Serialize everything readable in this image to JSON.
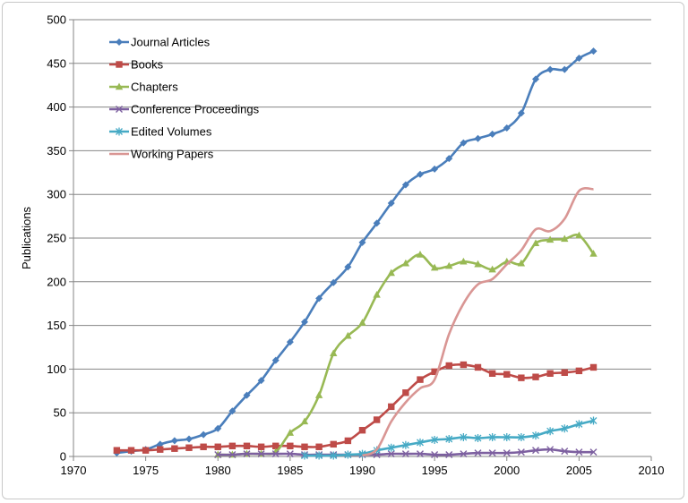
{
  "chart_data": {
    "type": "line",
    "title": "",
    "xlabel": "",
    "ylabel": "Publications",
    "xlim": [
      1970,
      2010
    ],
    "ylim": [
      0,
      500
    ],
    "xticks": [
      1970,
      1975,
      1980,
      1985,
      1990,
      1995,
      2000,
      2005,
      2010
    ],
    "yticks": [
      0,
      50,
      100,
      150,
      200,
      250,
      300,
      350,
      400,
      450,
      500
    ],
    "grid": "horizontal",
    "legend": "top-left",
    "series": [
      {
        "name": "Journal Articles",
        "color": "#4a7ebb",
        "marker": "diamond",
        "points": [
          [
            1973,
            4
          ],
          [
            1974,
            6
          ],
          [
            1975,
            8
          ],
          [
            1976,
            14
          ],
          [
            1977,
            18
          ],
          [
            1978,
            20
          ],
          [
            1979,
            25
          ],
          [
            1980,
            32
          ],
          [
            1981,
            52
          ],
          [
            1982,
            70
          ],
          [
            1983,
            87
          ],
          [
            1984,
            110
          ],
          [
            1985,
            131
          ],
          [
            1986,
            154
          ],
          [
            1987,
            181
          ],
          [
            1988,
            199
          ],
          [
            1989,
            217
          ],
          [
            1990,
            245
          ],
          [
            1991,
            267
          ],
          [
            1992,
            290
          ],
          [
            1993,
            311
          ],
          [
            1994,
            323
          ],
          [
            1995,
            329
          ],
          [
            1996,
            341
          ],
          [
            1997,
            359
          ],
          [
            1998,
            364
          ],
          [
            1999,
            369
          ],
          [
            2000,
            376
          ],
          [
            2001,
            393
          ],
          [
            2002,
            432
          ],
          [
            2003,
            443
          ],
          [
            2004,
            443
          ],
          [
            2005,
            456
          ],
          [
            2006,
            464
          ]
        ]
      },
      {
        "name": "Books",
        "color": "#be4b48",
        "marker": "square",
        "points": [
          [
            1973,
            7
          ],
          [
            1974,
            7
          ],
          [
            1975,
            7
          ],
          [
            1976,
            8
          ],
          [
            1977,
            9
          ],
          [
            1978,
            10
          ],
          [
            1979,
            11
          ],
          [
            1980,
            11
          ],
          [
            1981,
            12
          ],
          [
            1982,
            12
          ],
          [
            1983,
            11
          ],
          [
            1984,
            12
          ],
          [
            1985,
            12
          ],
          [
            1986,
            11
          ],
          [
            1987,
            11
          ],
          [
            1988,
            14
          ],
          [
            1989,
            18
          ],
          [
            1990,
            30
          ],
          [
            1991,
            42
          ],
          [
            1992,
            57
          ],
          [
            1993,
            73
          ],
          [
            1994,
            88
          ],
          [
            1995,
            97
          ],
          [
            1996,
            104
          ],
          [
            1997,
            105
          ],
          [
            1998,
            102
          ],
          [
            1999,
            95
          ],
          [
            2000,
            94
          ],
          [
            2001,
            90
          ],
          [
            2002,
            91
          ],
          [
            2003,
            95
          ],
          [
            2004,
            96
          ],
          [
            2005,
            98
          ],
          [
            2006,
            102
          ]
        ]
      },
      {
        "name": "Chapters",
        "color": "#98b954",
        "marker": "triangle",
        "points": [
          [
            1980,
            2
          ],
          [
            1981,
            2
          ],
          [
            1982,
            3
          ],
          [
            1983,
            3
          ],
          [
            1984,
            5
          ],
          [
            1985,
            27
          ],
          [
            1986,
            40
          ],
          [
            1987,
            70
          ],
          [
            1988,
            118
          ],
          [
            1989,
            138
          ],
          [
            1990,
            153
          ],
          [
            1991,
            185
          ],
          [
            1992,
            210
          ],
          [
            1993,
            221
          ],
          [
            1994,
            231
          ],
          [
            1995,
            216
          ],
          [
            1996,
            218
          ],
          [
            1997,
            223
          ],
          [
            1998,
            220
          ],
          [
            1999,
            214
          ],
          [
            2000,
            223
          ],
          [
            2001,
            221
          ],
          [
            2002,
            244
          ],
          [
            2003,
            248
          ],
          [
            2004,
            249
          ],
          [
            2005,
            253
          ],
          [
            2006,
            232
          ]
        ]
      },
      {
        "name": "Conference Proceedings",
        "color": "#7d60a0",
        "marker": "x",
        "points": [
          [
            1980,
            2
          ],
          [
            1981,
            2
          ],
          [
            1982,
            3
          ],
          [
            1983,
            3
          ],
          [
            1984,
            3
          ],
          [
            1985,
            3
          ],
          [
            1986,
            2
          ],
          [
            1987,
            2
          ],
          [
            1988,
            2
          ],
          [
            1989,
            2
          ],
          [
            1990,
            2
          ],
          [
            1991,
            2
          ],
          [
            1992,
            3
          ],
          [
            1993,
            3
          ],
          [
            1994,
            3
          ],
          [
            1995,
            2
          ],
          [
            1996,
            2
          ],
          [
            1997,
            3
          ],
          [
            1998,
            4
          ],
          [
            1999,
            4
          ],
          [
            2000,
            4
          ],
          [
            2001,
            5
          ],
          [
            2002,
            7
          ],
          [
            2003,
            8
          ],
          [
            2004,
            6
          ],
          [
            2005,
            5
          ],
          [
            2006,
            5
          ]
        ]
      },
      {
        "name": "Edited Volumes",
        "color": "#46aac5",
        "marker": "star",
        "points": [
          [
            1986,
            1
          ],
          [
            1987,
            1
          ],
          [
            1988,
            1
          ],
          [
            1989,
            2
          ],
          [
            1990,
            3
          ],
          [
            1991,
            7
          ],
          [
            1992,
            10
          ],
          [
            1993,
            13
          ],
          [
            1994,
            16
          ],
          [
            1995,
            19
          ],
          [
            1996,
            20
          ],
          [
            1997,
            22
          ],
          [
            1998,
            21
          ],
          [
            1999,
            22
          ],
          [
            2000,
            22
          ],
          [
            2001,
            22
          ],
          [
            2002,
            24
          ],
          [
            2003,
            29
          ],
          [
            2004,
            32
          ],
          [
            2005,
            37
          ],
          [
            2006,
            41
          ]
        ]
      },
      {
        "name": "Working Papers",
        "color": "#d99694",
        "marker": "none",
        "points": [
          [
            1990,
            1
          ],
          [
            1991,
            8
          ],
          [
            1992,
            40
          ],
          [
            1993,
            62
          ],
          [
            1994,
            78
          ],
          [
            1995,
            88
          ],
          [
            1996,
            140
          ],
          [
            1997,
            175
          ],
          [
            1998,
            197
          ],
          [
            1999,
            203
          ],
          [
            2000,
            220
          ],
          [
            2001,
            236
          ],
          [
            2002,
            260
          ],
          [
            2003,
            258
          ],
          [
            2004,
            272
          ],
          [
            2005,
            304
          ],
          [
            2006,
            306
          ]
        ]
      }
    ]
  }
}
